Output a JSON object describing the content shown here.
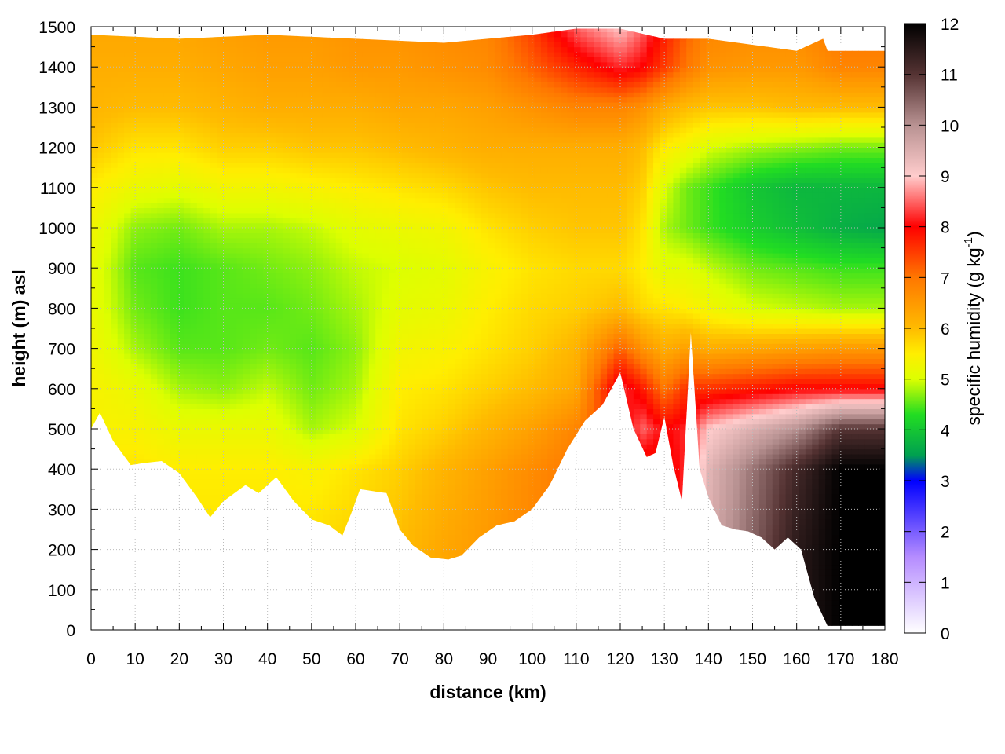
{
  "chart_data": {
    "type": "heatmap",
    "title": "",
    "xlabel": "distance (km)",
    "ylabel": "height (m) asl",
    "xlim": [
      0,
      180
    ],
    "ylim": [
      0,
      1500
    ],
    "x_ticks": [
      0,
      10,
      20,
      30,
      40,
      50,
      60,
      70,
      80,
      90,
      100,
      110,
      120,
      130,
      140,
      150,
      160,
      170,
      180
    ],
    "y_ticks": [
      0,
      100,
      200,
      300,
      400,
      500,
      600,
      700,
      800,
      900,
      1000,
      1100,
      1200,
      1300,
      1400,
      1500
    ],
    "grid": true,
    "colorbar": {
      "label": "specific humidity (g kg",
      "label_sup": "-1",
      "label_end": ")",
      "range": [
        0,
        12
      ],
      "ticks": [
        0,
        1,
        2,
        3,
        4,
        5,
        6,
        7,
        8,
        9,
        10,
        11,
        12
      ],
      "colors": [
        {
          "v": 0,
          "c": "#ffffff"
        },
        {
          "v": 1.5,
          "c": "#b58cff"
        },
        {
          "v": 3,
          "c": "#0000ff"
        },
        {
          "v": 3.5,
          "c": "#00a050"
        },
        {
          "v": 4.3,
          "c": "#22dd22"
        },
        {
          "v": 5,
          "c": "#ddff00"
        },
        {
          "v": 5.5,
          "c": "#ffee00"
        },
        {
          "v": 6,
          "c": "#ffbb00"
        },
        {
          "v": 7,
          "c": "#ff7700"
        },
        {
          "v": 8,
          "c": "#ff0000"
        },
        {
          "v": 9,
          "c": "#ffcccc"
        },
        {
          "v": 10,
          "c": "#b89292"
        },
        {
          "v": 11,
          "c": "#553333"
        },
        {
          "v": 12,
          "c": "#000000"
        }
      ]
    },
    "terrain_top": {
      "x": [
        0,
        2,
        5,
        9,
        12,
        16,
        20,
        24,
        27,
        30,
        35,
        38,
        42,
        46,
        50,
        54,
        57,
        59,
        61,
        64,
        67,
        70,
        73,
        77,
        81,
        84,
        88,
        92,
        96,
        100,
        104,
        108,
        112,
        116,
        120,
        123,
        126,
        128,
        130,
        132,
        134,
        136,
        138,
        140,
        143,
        146,
        149,
        152,
        155,
        158,
        161,
        164,
        167,
        170,
        173,
        176,
        180
      ],
      "y": [
        500,
        540,
        470,
        410,
        415,
        420,
        390,
        330,
        280,
        320,
        360,
        340,
        380,
        320,
        275,
        260,
        235,
        290,
        350,
        345,
        340,
        250,
        210,
        180,
        175,
        185,
        230,
        260,
        270,
        300,
        360,
        450,
        520,
        560,
        640,
        500,
        430,
        440,
        530,
        410,
        320,
        740,
        400,
        330,
        260,
        250,
        245,
        230,
        200,
        230,
        200,
        80,
        10,
        10,
        10,
        10,
        10
      ]
    },
    "top_edge": {
      "x": [
        0,
        20,
        40,
        60,
        80,
        100,
        110,
        120,
        130,
        140,
        160,
        166,
        167,
        180
      ],
      "y": [
        1480,
        1470,
        1480,
        1470,
        1460,
        1480,
        1495,
        1495,
        1470,
        1470,
        1440,
        1470,
        1440,
        1440
      ]
    },
    "field": {
      "x": [
        0,
        10,
        20,
        30,
        40,
        50,
        60,
        70,
        80,
        90,
        100,
        110,
        120,
        125,
        130,
        135,
        140,
        150,
        160,
        170,
        180
      ],
      "y": [
        0,
        200,
        400,
        500,
        600,
        700,
        800,
        900,
        1000,
        1100,
        1200,
        1300,
        1400,
        1500
      ],
      "z": [
        [
          5.6,
          5.6,
          5.6,
          5.6,
          5.6,
          5.7,
          5.8,
          6.0,
          6.2,
          6.4,
          6.8,
          7.0,
          7.5,
          7.6,
          7.8,
          8.2,
          9.5,
          10.5,
          11.5,
          12.0,
          12.0
        ],
        [
          5.6,
          5.6,
          5.6,
          5.6,
          5.6,
          5.7,
          5.8,
          6.0,
          6.3,
          6.5,
          6.8,
          7.0,
          7.5,
          7.6,
          7.8,
          8.2,
          9.5,
          10.5,
          11.5,
          12.0,
          12.0
        ],
        [
          5.6,
          5.6,
          5.5,
          5.5,
          5.5,
          5.4,
          5.6,
          5.8,
          6.1,
          6.4,
          6.7,
          7.0,
          7.5,
          7.6,
          7.8,
          8.2,
          9.4,
          10.3,
          11.2,
          12.0,
          12.0
        ],
        [
          5.4,
          5.4,
          5.2,
          5.2,
          5.2,
          4.8,
          5.0,
          5.6,
          5.8,
          6.1,
          6.4,
          6.8,
          7.8,
          8.5,
          8.0,
          8.2,
          9.0,
          9.5,
          10.0,
          11.0,
          11.0
        ],
        [
          5.4,
          5.2,
          4.8,
          4.7,
          4.9,
          4.6,
          4.8,
          5.5,
          5.6,
          5.8,
          6.0,
          6.3,
          8.3,
          7.8,
          7.0,
          7.6,
          7.6,
          7.8,
          8.0,
          8.0,
          8.0
        ],
        [
          5.3,
          4.8,
          4.5,
          4.5,
          4.6,
          4.5,
          4.7,
          5.3,
          5.4,
          5.6,
          5.8,
          6.1,
          7.2,
          6.6,
          6.2,
          6.4,
          6.2,
          6.3,
          6.4,
          6.5,
          6.5
        ],
        [
          5.2,
          4.6,
          4.4,
          4.5,
          4.5,
          4.6,
          4.8,
          5.1,
          5.2,
          5.5,
          5.7,
          5.8,
          6.0,
          5.7,
          5.6,
          5.5,
          5.3,
          5.0,
          4.9,
          4.8,
          4.8
        ],
        [
          5.2,
          4.5,
          4.4,
          4.5,
          4.6,
          4.7,
          4.9,
          5.0,
          5.1,
          5.4,
          5.6,
          5.7,
          5.7,
          5.5,
          5.1,
          5.1,
          4.9,
          4.6,
          4.5,
          4.4,
          4.4
        ],
        [
          5.3,
          4.7,
          4.6,
          4.8,
          4.8,
          4.9,
          5.1,
          5.2,
          5.3,
          5.6,
          5.8,
          5.9,
          5.9,
          5.6,
          4.8,
          4.6,
          4.4,
          4.1,
          3.9,
          3.7,
          3.6
        ],
        [
          5.5,
          5.2,
          5.1,
          5.3,
          5.3,
          5.4,
          5.5,
          5.6,
          5.7,
          5.9,
          6.0,
          6.0,
          6.0,
          5.8,
          5.0,
          4.6,
          4.4,
          4.0,
          3.8,
          3.8,
          3.8
        ],
        [
          5.9,
          5.6,
          5.6,
          5.8,
          5.8,
          5.9,
          5.9,
          6.0,
          6.1,
          6.2,
          6.2,
          6.2,
          6.2,
          6.0,
          5.5,
          5.3,
          5.0,
          4.8,
          4.7,
          4.6,
          4.6
        ],
        [
          6.1,
          6.0,
          6.0,
          6.1,
          6.2,
          6.2,
          6.2,
          6.3,
          6.3,
          6.4,
          6.6,
          6.8,
          6.8,
          6.6,
          6.2,
          6.0,
          5.9,
          5.9,
          6.0,
          6.0,
          6.0
        ],
        [
          6.2,
          6.2,
          6.2,
          6.3,
          6.4,
          6.4,
          6.5,
          6.5,
          6.6,
          6.7,
          7.2,
          7.7,
          8.2,
          8.0,
          7.5,
          7.0,
          6.6,
          6.5,
          6.5,
          6.8,
          6.8
        ],
        [
          6.3,
          6.3,
          6.3,
          6.4,
          6.5,
          6.5,
          6.6,
          6.6,
          6.7,
          6.8,
          7.5,
          8.5,
          9.0,
          8.5,
          7.8,
          7.2,
          6.8,
          6.7,
          6.7,
          7.0,
          7.0
        ]
      ]
    }
  }
}
